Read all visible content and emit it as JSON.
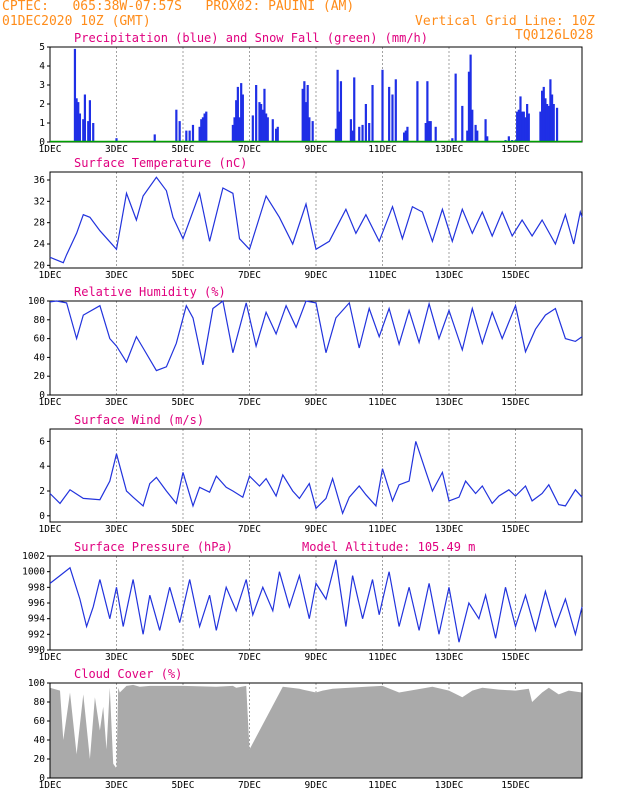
{
  "header": {
    "station": "CPTEC:   065:38W-07:57S   PROX02: PAUINI (AM)",
    "run": "01DEC2020 10Z (GMT)",
    "grid_note": "Vertical Grid Line: 10Z",
    "code": "TQ0126L028"
  },
  "colors": {
    "line": "#2233dd",
    "precip": "#1f2fe6",
    "snow": "#00a000",
    "cloud": "#aaaaaa",
    "title": "#e0007f",
    "header": "#ff8c1a"
  },
  "x_ticks": [
    "1DEC",
    "3DEC",
    "5DEC",
    "7DEC",
    "9DEC",
    "11DEC",
    "13DEC",
    "15DEC"
  ],
  "chart_data": [
    {
      "type": "bar",
      "title": "Precipitation (blue) and Snow Fall (green) (mm/h)",
      "ylim": [
        0,
        5
      ],
      "yticks": [
        0,
        1,
        2,
        3,
        4,
        5
      ],
      "x_unit": "days since 01DEC 10Z",
      "series": [
        {
          "name": "Precipitation",
          "x": [
            0.75,
            0.8,
            0.85,
            0.9,
            1.0,
            1.05,
            1.15,
            1.2,
            1.3,
            2.0,
            3.15,
            3.8,
            3.9,
            4.1,
            4.2,
            4.3,
            4.5,
            4.55,
            4.6,
            4.65,
            4.7,
            5.5,
            5.55,
            5.6,
            5.65,
            5.7,
            5.75,
            5.8,
            6.1,
            6.2,
            6.3,
            6.35,
            6.4,
            6.45,
            6.5,
            6.55,
            6.7,
            6.8,
            6.85,
            7.6,
            7.65,
            7.7,
            7.75,
            7.8,
            7.9,
            8.6,
            8.65,
            8.7,
            8.75,
            9.05,
            9.1,
            9.15,
            9.3,
            9.4,
            9.5,
            9.6,
            9.7,
            10.0,
            10.2,
            10.3,
            10.4,
            10.65,
            10.7,
            10.75,
            11.05,
            11.3,
            11.35,
            11.4,
            11.45,
            11.6,
            12.1,
            12.2,
            12.4,
            12.55,
            12.6,
            12.65,
            12.7,
            12.8,
            12.85,
            13.1,
            13.15,
            13.7,
            13.8,
            13.9,
            14.0,
            14.05,
            14.1,
            14.15,
            14.2,
            14.25,
            14.3,
            14.35,
            14.4,
            14.75,
            14.8,
            14.85,
            14.9,
            14.95,
            15.0,
            15.05,
            15.1,
            15.15,
            15.25
          ],
          "values": [
            4.9,
            2.3,
            2.1,
            1.5,
            1.2,
            2.5,
            1.1,
            2.2,
            1.0,
            0.2,
            0.4,
            1.7,
            1.1,
            0.6,
            0.6,
            0.9,
            0.8,
            1.2,
            1.3,
            1.5,
            1.6,
            0.9,
            1.3,
            2.2,
            2.9,
            1.3,
            3.1,
            2.5,
            1.4,
            3.0,
            2.1,
            2.0,
            1.7,
            2.8,
            1.5,
            1.3,
            1.2,
            0.7,
            0.8,
            2.8,
            3.2,
            2.1,
            3.0,
            1.3,
            1.1,
            0.7,
            3.8,
            1.6,
            3.2,
            1.2,
            0.6,
            3.4,
            0.8,
            0.9,
            2.0,
            1.0,
            3.0,
            3.8,
            2.9,
            2.5,
            3.3,
            0.5,
            0.6,
            0.8,
            3.2,
            1.0,
            3.2,
            1.1,
            1.1,
            0.8,
            0.2,
            3.6,
            1.9,
            0.6,
            3.7,
            4.6,
            1.7,
            0.9,
            0.6,
            1.2,
            0.3,
            0.1,
            0.3,
            0.1,
            0.1,
            1.6,
            1.7,
            2.4,
            1.6,
            1.6,
            1.3,
            2.0,
            1.5,
            1.6,
            2.7,
            2.9,
            2.3,
            2.0,
            1.9,
            3.3,
            2.5,
            2.0,
            1.8
          ]
        },
        {
          "name": "Snow Fall",
          "x": [
            0,
            16
          ],
          "values": [
            0,
            0
          ]
        }
      ]
    },
    {
      "type": "line",
      "title": "Surface Temperature (nC)",
      "ylim": [
        19.5,
        37.5
      ],
      "yticks": [
        20,
        24,
        28,
        32,
        36
      ],
      "x": [
        0,
        0.4,
        0.5,
        0.8,
        1.0,
        1.2,
        1.5,
        2.0,
        2.3,
        2.6,
        2.8,
        3.2,
        3.5,
        3.7,
        4.0,
        4.5,
        4.8,
        5.2,
        5.5,
        5.7,
        6.0,
        6.5,
        6.9,
        7.3,
        7.7,
        8.0,
        8.4,
        8.9,
        9.2,
        9.5,
        9.9,
        10.3,
        10.6,
        10.9,
        11.2,
        11.5,
        11.8,
        12.1,
        12.4,
        12.7,
        13.0,
        13.3,
        13.6,
        13.9,
        14.2,
        14.5,
        14.8,
        15.2,
        15.5,
        15.75,
        15.95,
        16.0
      ],
      "values": [
        21.5,
        20.5,
        22.0,
        26.0,
        29.5,
        29.0,
        26.5,
        23.0,
        33.5,
        28.5,
        33.0,
        36.5,
        34.0,
        29.0,
        25.0,
        33.5,
        24.5,
        34.5,
        33.5,
        25.0,
        23.0,
        33.0,
        29.0,
        24.0,
        31.5,
        23.0,
        24.5,
        30.5,
        26.0,
        29.5,
        24.5,
        31.0,
        25.0,
        31.0,
        30.0,
        24.5,
        30.5,
        24.5,
        30.5,
        26.0,
        30.0,
        25.5,
        30.0,
        25.5,
        28.5,
        25.5,
        28.5,
        24.0,
        29.5,
        24.0,
        30.0,
        29.0
      ]
    },
    {
      "type": "line",
      "title": "Relative Humidity (%)",
      "ylim": [
        0,
        100
      ],
      "yticks": [
        0,
        20,
        40,
        60,
        80,
        100
      ],
      "x": [
        0,
        0.2,
        0.5,
        0.8,
        1.0,
        1.5,
        1.8,
        2.0,
        2.3,
        2.6,
        2.8,
        3.2,
        3.5,
        3.8,
        4.1,
        4.3,
        4.6,
        4.9,
        5.2,
        5.5,
        5.9,
        6.2,
        6.5,
        6.8,
        7.1,
        7.4,
        7.7,
        8.0,
        8.3,
        8.6,
        9.0,
        9.3,
        9.6,
        9.9,
        10.2,
        10.5,
        10.8,
        11.1,
        11.4,
        11.7,
        12.0,
        12.4,
        12.7,
        13.0,
        13.3,
        13.6,
        14.0,
        14.3,
        14.6,
        14.9,
        15.2,
        15.5,
        15.8,
        16.0
      ],
      "values": [
        99,
        100,
        98,
        60,
        85,
        95,
        60,
        52,
        35,
        62,
        50,
        26,
        30,
        55,
        95,
        82,
        32,
        92,
        100,
        45,
        98,
        52,
        88,
        65,
        95,
        72,
        100,
        98,
        45,
        82,
        98,
        50,
        92,
        62,
        92,
        54,
        90,
        56,
        97,
        60,
        90,
        48,
        92,
        55,
        88,
        60,
        95,
        46,
        70,
        85,
        92,
        60,
        57,
        62
      ]
    },
    {
      "type": "line",
      "title": "Surface Wind (m/s)",
      "ylim": [
        -0.5,
        7
      ],
      "yticks": [
        0,
        2,
        4,
        6
      ],
      "x": [
        0,
        0.3,
        0.6,
        1.0,
        1.5,
        1.8,
        2.0,
        2.3,
        2.5,
        2.8,
        3.0,
        3.2,
        3.5,
        3.8,
        4.0,
        4.3,
        4.5,
        4.8,
        5.0,
        5.3,
        5.5,
        5.8,
        6.0,
        6.3,
        6.5,
        6.8,
        7.0,
        7.3,
        7.5,
        7.8,
        8.0,
        8.3,
        8.5,
        8.8,
        9.0,
        9.3,
        9.5,
        9.8,
        10.0,
        10.3,
        10.5,
        10.8,
        11.0,
        11.3,
        11.5,
        11.8,
        12.0,
        12.3,
        12.5,
        12.8,
        13.0,
        13.3,
        13.5,
        13.8,
        14.0,
        14.3,
        14.5,
        14.8,
        15.0,
        15.3,
        15.5,
        15.8,
        16.0
      ],
      "values": [
        1.8,
        1.0,
        2.1,
        1.4,
        1.3,
        2.8,
        5.0,
        2.0,
        1.5,
        0.8,
        2.6,
        3.1,
        2.0,
        1.0,
        3.5,
        0.8,
        2.3,
        1.9,
        3.2,
        2.3,
        2.0,
        1.5,
        3.2,
        2.4,
        3.0,
        1.6,
        3.3,
        2.0,
        1.4,
        2.6,
        0.6,
        1.4,
        3.0,
        0.2,
        1.5,
        2.4,
        1.7,
        0.8,
        3.8,
        1.2,
        2.5,
        2.8,
        6.0,
        3.6,
        2.0,
        3.5,
        1.2,
        1.5,
        2.8,
        1.8,
        2.4,
        1.0,
        1.6,
        2.1,
        1.6,
        2.4,
        1.2,
        1.8,
        2.5,
        0.9,
        0.8,
        2.1,
        1.5
      ]
    },
    {
      "type": "line",
      "title": "Surface Pressure (hPa)",
      "annotation": "Model Altitude: 105.49 m",
      "ylim": [
        990,
        1002
      ],
      "yticks": [
        990,
        992,
        994,
        996,
        998,
        1000,
        1002
      ],
      "x": [
        0,
        0.3,
        0.6,
        0.9,
        1.1,
        1.3,
        1.5,
        1.8,
        2.0,
        2.2,
        2.5,
        2.8,
        3.0,
        3.3,
        3.6,
        3.9,
        4.2,
        4.5,
        4.8,
        5.0,
        5.3,
        5.6,
        5.9,
        6.1,
        6.4,
        6.7,
        6.9,
        7.2,
        7.5,
        7.8,
        8.0,
        8.3,
        8.6,
        8.9,
        9.1,
        9.4,
        9.7,
        9.9,
        10.2,
        10.5,
        10.8,
        11.1,
        11.4,
        11.7,
        12.0,
        12.3,
        12.6,
        12.9,
        13.1,
        13.4,
        13.7,
        14.0,
        14.3,
        14.6,
        14.9,
        15.2,
        15.5,
        15.8,
        16.0
      ],
      "values": [
        998.5,
        999.5,
        1000.5,
        996.5,
        993.0,
        995.5,
        999.0,
        994.0,
        998.0,
        993.0,
        999.0,
        992.0,
        997.0,
        992.5,
        998.0,
        993.5,
        999.0,
        993.0,
        997.0,
        992.5,
        998.0,
        995.0,
        999.0,
        994.5,
        998.0,
        995.0,
        1000.0,
        995.5,
        999.5,
        994.0,
        998.5,
        996.5,
        1001.5,
        993.0,
        999.5,
        994.0,
        999.0,
        994.5,
        1000.0,
        993.0,
        998.0,
        992.5,
        998.5,
        992.0,
        998.0,
        991.0,
        996.0,
        994.0,
        997.0,
        991.5,
        998.0,
        993.0,
        997.0,
        992.5,
        997.5,
        993.0,
        996.5,
        992.0,
        995.5
      ]
    },
    {
      "type": "area",
      "title": "Cloud Cover (%)",
      "ylim": [
        0,
        100
      ],
      "yticks": [
        0,
        20,
        40,
        60,
        80,
        100
      ],
      "x": [
        0,
        0.3,
        0.4,
        0.6,
        0.8,
        1.0,
        1.2,
        1.35,
        1.5,
        1.6,
        1.7,
        1.8,
        1.9,
        2.0,
        2.05,
        2.1,
        2.3,
        2.5,
        2.7,
        3.0,
        4.0,
        5.0,
        5.5,
        5.6,
        5.9,
        6.0,
        7.0,
        7.5,
        7.6,
        8.0,
        8.2,
        8.5,
        9.0,
        9.5,
        10.0,
        10.5,
        11.0,
        11.5,
        12.0,
        12.4,
        12.7,
        13.0,
        13.5,
        14.0,
        14.4,
        14.5,
        14.8,
        15.0,
        15.3,
        15.6,
        16.0
      ],
      "values": [
        95,
        92,
        40,
        90,
        25,
        88,
        20,
        85,
        50,
        75,
        30,
        95,
        15,
        10,
        95,
        90,
        97,
        98,
        96,
        97,
        97,
        96,
        97,
        95,
        97,
        30,
        96,
        94,
        93,
        90,
        92,
        94,
        95,
        96,
        97,
        90,
        93,
        96,
        92,
        85,
        92,
        95,
        93,
        92,
        94,
        80,
        90,
        95,
        88,
        92,
        90
      ]
    }
  ]
}
